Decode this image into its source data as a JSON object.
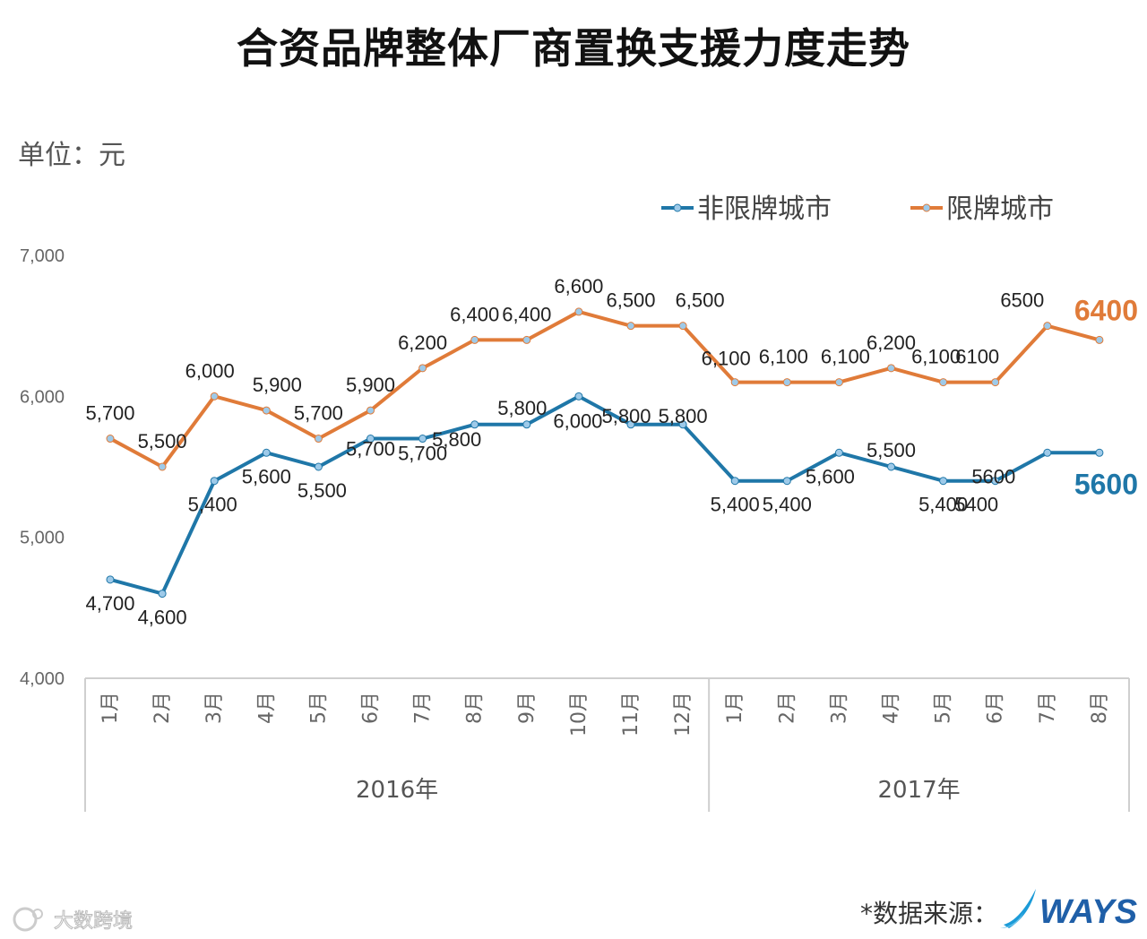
{
  "title": "合资品牌整体厂商置换支援力度走势",
  "unit": "单位：元",
  "source": "*数据来源：",
  "brand": "WAYS",
  "watermark": "大数跨境",
  "colors": {
    "unrestricted": "#1f77a8",
    "restricted": "#e07b39",
    "marker": "#9ecae9"
  },
  "chart_data": {
    "type": "line",
    "title": "合资品牌整体厂商置换支援力度走势",
    "ylabel": "单位：元",
    "ylim": [
      4000,
      7000
    ],
    "yticks": [
      "4,000",
      "5,000",
      "6,000",
      "7,000"
    ],
    "yticks_values": [
      4000,
      5000,
      6000,
      7000
    ],
    "categories": [
      "1月",
      "2月",
      "3月",
      "4月",
      "5月",
      "6月",
      "7月",
      "8月",
      "9月",
      "10月",
      "11月",
      "12月",
      "1月",
      "2月",
      "3月",
      "4月",
      "5月",
      "6月",
      "7月",
      "8月"
    ],
    "groups": [
      {
        "label": "2016年",
        "count": 12
      },
      {
        "label": "2017年",
        "count": 8
      }
    ],
    "legend": [
      "非限牌城市",
      "限牌城市"
    ],
    "legend_position": "top-right",
    "series": [
      {
        "name": "非限牌城市",
        "key": "unrestricted",
        "values": [
          4700,
          4600,
          5400,
          5600,
          5500,
          5700,
          5700,
          5800,
          5800,
          6000,
          5800,
          5800,
          5400,
          5400,
          5600,
          5500,
          5400,
          5400,
          5600,
          5600
        ],
        "labels": [
          "4,700",
          "4,600",
          "5,400",
          "5,600",
          "5,500",
          "5,700",
          "5,700",
          "5,800",
          "5,800",
          "6,000",
          "5,800",
          "5,800",
          "5,400",
          "5,400",
          "5,600",
          "5,500",
          "5,400",
          "5400",
          "5600",
          ""
        ],
        "highlight": "5600"
      },
      {
        "name": "限牌城市",
        "key": "restricted",
        "values": [
          5700,
          5500,
          6000,
          5900,
          5700,
          5900,
          6200,
          6400,
          6400,
          6600,
          6500,
          6500,
          6100,
          6100,
          6100,
          6200,
          6100,
          6100,
          6500,
          6400
        ],
        "labels": [
          "5,700",
          "5,500",
          "6,000",
          "5,900",
          "5,700",
          "5,900",
          "6,200",
          "6,400",
          "6,400",
          "6,600",
          "6,500",
          "6,500",
          "6,100",
          "6,100",
          "6,100",
          "6,200",
          "6,100",
          "6100",
          "6500",
          ""
        ],
        "highlight": "6400"
      }
    ]
  }
}
